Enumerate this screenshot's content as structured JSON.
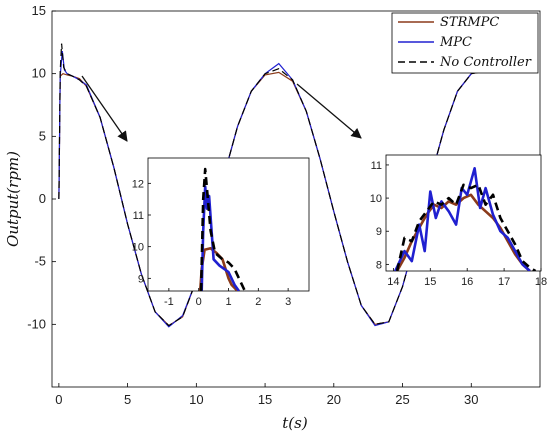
{
  "chart_data": {
    "type": "line",
    "xlabel": "t(s)",
    "ylabel": "Output(rpm)",
    "xlim": [
      -0.5,
      35
    ],
    "ylim": [
      -15,
      15
    ],
    "xticks": [
      0,
      5,
      10,
      15,
      20,
      25,
      30
    ],
    "yticks": [
      -10,
      -5,
      0,
      5,
      10,
      15
    ],
    "legend": {
      "position": "top-right",
      "entries": [
        "STRMPC",
        "MPC",
        "No Controller"
      ]
    },
    "series": [
      {
        "name": "STRMPC",
        "color": "#8B3A1A",
        "style": "solid",
        "x": [
          0,
          0.1,
          0.3,
          0.6,
          1,
          1.5,
          2,
          3,
          4,
          5,
          6,
          7,
          8,
          9,
          10,
          11,
          12,
          13,
          14,
          15,
          16,
          17,
          18,
          19,
          20,
          21,
          22,
          23,
          24,
          25,
          26,
          27,
          28,
          29,
          30,
          31,
          31.5
        ],
        "y": [
          0,
          9.8,
          10,
          9.9,
          9.8,
          9.6,
          9,
          6.5,
          2.5,
          -2,
          -6,
          -9,
          -10.1,
          -9.4,
          -6.5,
          -2.5,
          1.8,
          5.8,
          8.6,
          9.9,
          10.1,
          9.4,
          7,
          3.2,
          -1,
          -5,
          -8.5,
          -10,
          -9.8,
          -7,
          -3,
          1.5,
          5.5,
          8.6,
          10,
          10.2,
          10.1
        ]
      },
      {
        "name": "MPC",
        "color": "#2020D0",
        "style": "solid",
        "x": [
          0,
          0.1,
          0.25,
          0.4,
          0.6,
          1,
          1.5,
          2,
          3,
          4,
          5,
          6,
          7,
          8,
          9,
          10,
          11,
          12,
          13,
          14,
          15,
          16,
          17,
          18,
          19,
          20,
          21,
          22,
          23,
          24,
          25,
          26,
          27,
          28,
          29,
          30,
          31,
          31.5
        ],
        "y": [
          0,
          9.8,
          11.8,
          10.3,
          10,
          9.8,
          9.5,
          9.1,
          6.5,
          2.5,
          -2,
          -6,
          -9,
          -10.2,
          -9.3,
          -6.5,
          -2.5,
          1.8,
          5.8,
          8.6,
          10,
          10.8,
          9.5,
          7,
          3.2,
          -1,
          -5,
          -8.5,
          -10.1,
          -9.8,
          -7,
          -3,
          1.5,
          5.5,
          8.6,
          10,
          10.3,
          10.1
        ]
      },
      {
        "name": "No Controller",
        "color": "#000000",
        "style": "dashed",
        "x": [
          0,
          0.1,
          0.2,
          0.35,
          0.6,
          1,
          1.5,
          2,
          3,
          4,
          5,
          6,
          7,
          8,
          9,
          10,
          11,
          12,
          13,
          14,
          15,
          16,
          17,
          18,
          19,
          20,
          21,
          22,
          23,
          24,
          25,
          26,
          27,
          28,
          29,
          30,
          31,
          31.5
        ],
        "y": [
          0,
          10.2,
          12.4,
          10.5,
          10,
          9.8,
          9.5,
          9,
          6.5,
          2.5,
          -2,
          -6,
          -9,
          -10.1,
          -9.4,
          -6.5,
          -2.5,
          1.8,
          5.8,
          8.6,
          10,
          10.4,
          9.5,
          7,
          3.2,
          -1,
          -5,
          -8.5,
          -10,
          -9.8,
          -7,
          -3,
          1.5,
          5.5,
          8.6,
          10,
          10.2,
          10.1
        ]
      }
    ],
    "insets": [
      {
        "xlim": [
          -1.7,
          3.7
        ],
        "ylim": [
          8.6,
          12.8
        ],
        "xticks": [
          -1,
          0,
          1,
          2,
          3
        ],
        "yticks": [
          9,
          10,
          11,
          12
        ],
        "series": [
          {
            "name": "STRMPC",
            "x": [
              0.05,
              0.1,
              0.2,
              0.4,
              0.6,
              0.8,
              0.9,
              1.0,
              1.1,
              1.2,
              1.3
            ],
            "y": [
              8.6,
              9.3,
              9.9,
              9.95,
              9.8,
              9.6,
              9.3,
              9.0,
              8.8,
              8.7,
              8.6
            ]
          },
          {
            "name": "MPC",
            "x": [
              0.1,
              0.15,
              0.22,
              0.28,
              0.35,
              0.5,
              0.7,
              0.85,
              1.0,
              1.1,
              1.2,
              1.35
            ],
            "y": [
              8.6,
              10.5,
              11.9,
              11.2,
              11.6,
              9.6,
              9.4,
              9.3,
              9.2,
              9.0,
              8.8,
              8.6
            ]
          },
          {
            "name": "No Controller",
            "x": [
              0.08,
              0.15,
              0.22,
              0.3,
              0.4,
              0.55,
              0.8,
              1.0,
              1.2,
              1.4,
              1.55
            ],
            "y": [
              8.6,
              11.5,
              12.45,
              11.6,
              10.5,
              9.8,
              9.6,
              9.5,
              9.3,
              8.9,
              8.6
            ]
          }
        ]
      },
      {
        "xlim": [
          13.8,
          18
        ],
        "ylim": [
          7.8,
          11.3
        ],
        "xticks": [
          14,
          15,
          16,
          17,
          18
        ],
        "yticks": [
          8,
          9,
          10,
          11
        ],
        "series": [
          {
            "name": "STRMPC",
            "x": [
              14.1,
              14.3,
              14.5,
              14.7,
              14.9,
              15.1,
              15.3,
              15.5,
              15.7,
              15.9,
              16.1,
              16.3,
              16.5,
              16.7,
              16.9,
              17.1,
              17.3,
              17.5,
              17.7
            ],
            "y": [
              7.8,
              8.2,
              8.7,
              9.1,
              9.5,
              9.8,
              9.7,
              9.9,
              9.8,
              10.0,
              10.1,
              9.8,
              9.6,
              9.4,
              9.1,
              8.7,
              8.3,
              8.0,
              7.8
            ]
          },
          {
            "name": "MPC",
            "x": [
              14.05,
              14.3,
              14.5,
              14.7,
              14.85,
              15.0,
              15.15,
              15.3,
              15.5,
              15.7,
              15.85,
              16.0,
              16.2,
              16.35,
              16.5,
              16.7,
              16.9,
              17.1,
              17.3,
              17.5,
              17.7
            ],
            "y": [
              7.8,
              8.4,
              8.1,
              9.2,
              8.4,
              10.2,
              9.4,
              9.9,
              9.6,
              9.2,
              10.3,
              10.1,
              10.9,
              9.7,
              10.3,
              9.5,
              9.0,
              8.8,
              8.4,
              8.0,
              7.8
            ]
          },
          {
            "name": "No Controller",
            "x": [
              14.1,
              14.3,
              14.5,
              14.7,
              14.9,
              15.1,
              15.3,
              15.5,
              15.7,
              15.9,
              16.1,
              16.3,
              16.5,
              16.7,
              16.9,
              17.1,
              17.3,
              17.5,
              17.7,
              17.85
            ],
            "y": [
              7.8,
              8.8,
              8.7,
              9.3,
              9.6,
              9.9,
              9.8,
              10.0,
              9.8,
              10.4,
              10.3,
              10.4,
              9.8,
              10.1,
              9.4,
              9.0,
              8.6,
              8.1,
              7.9,
              7.8
            ]
          }
        ]
      }
    ]
  }
}
